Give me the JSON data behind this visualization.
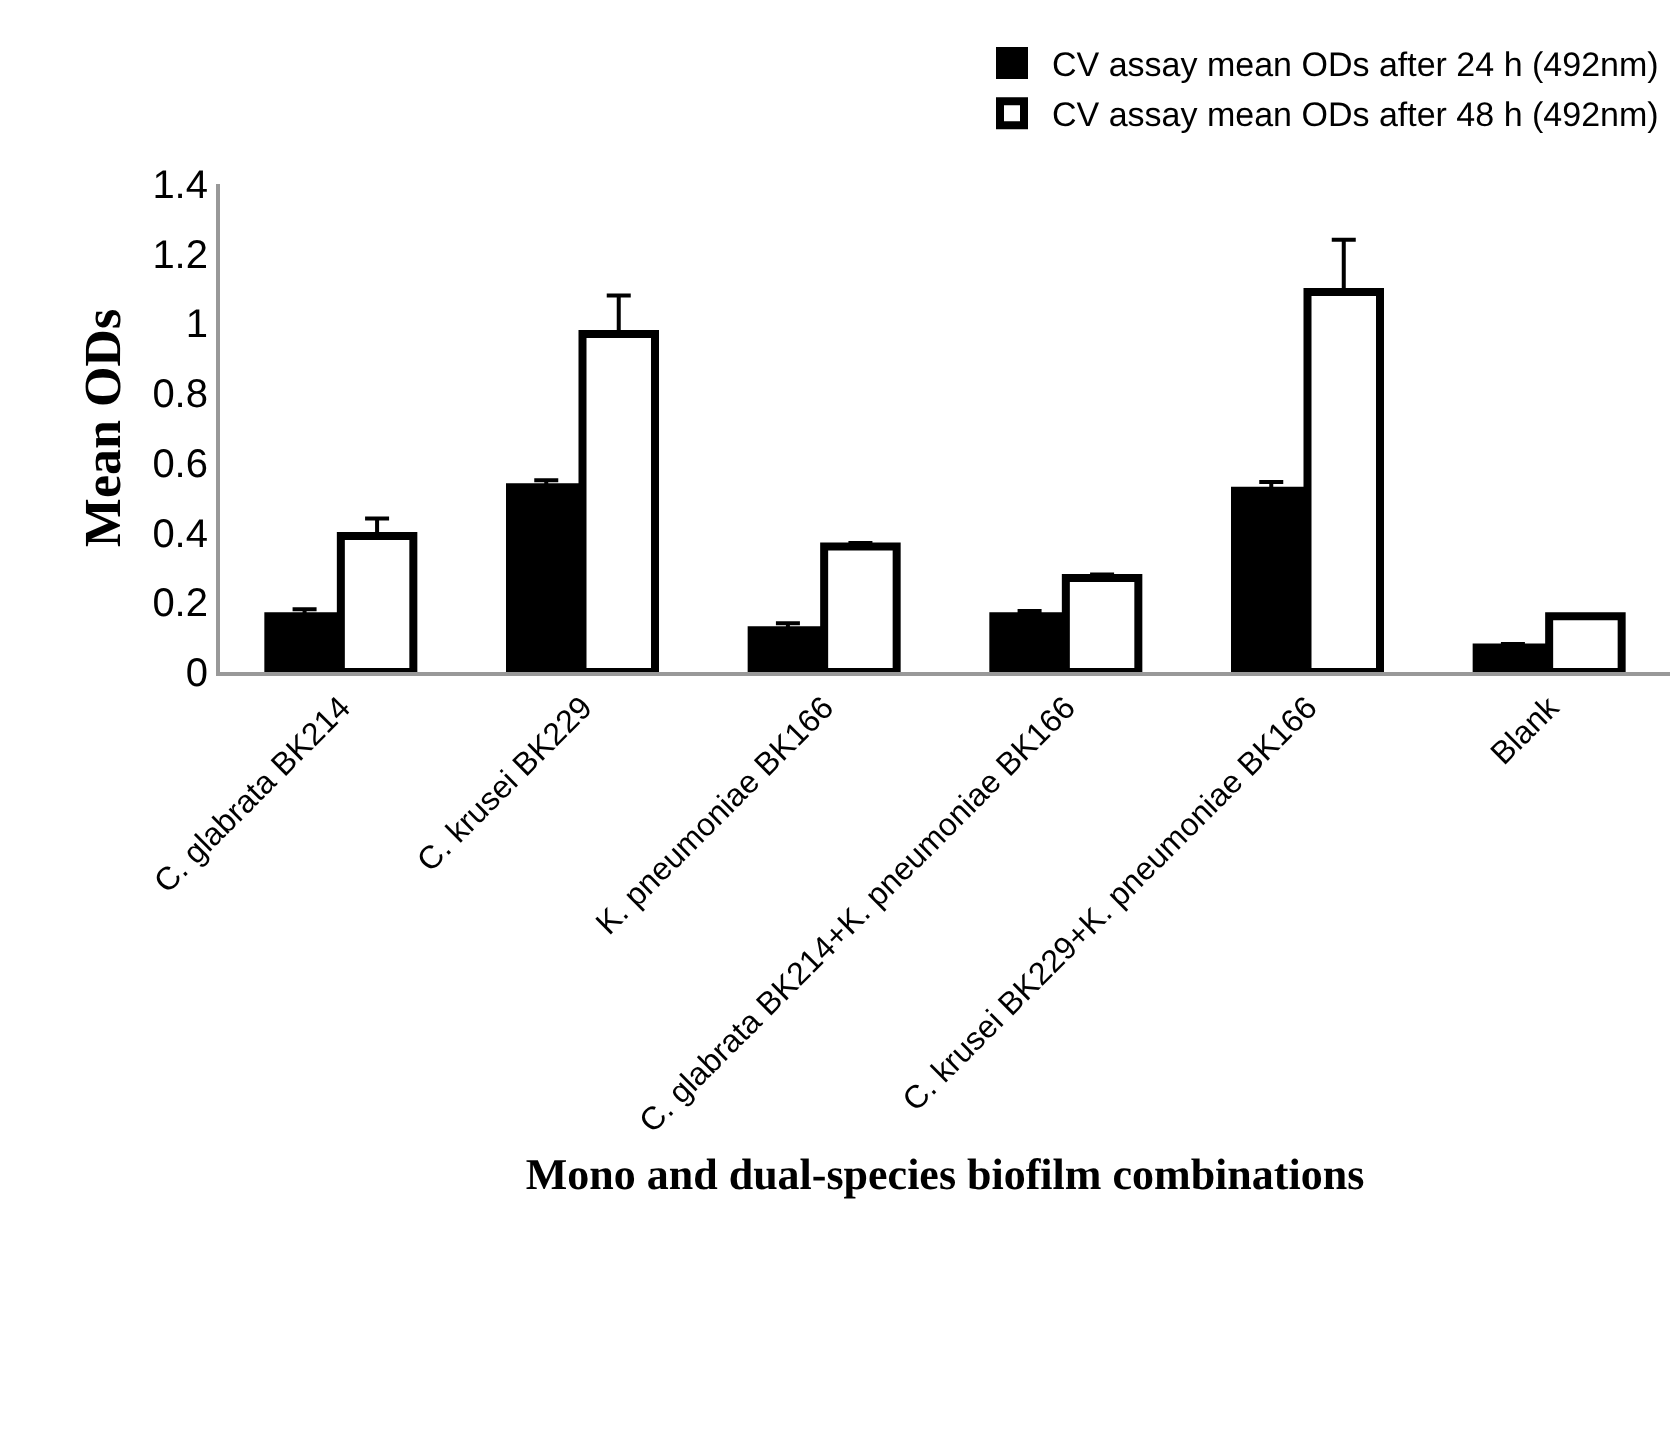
{
  "chart_data": {
    "type": "bar",
    "xlabel": "Mono and dual-species biofilm combinations",
    "ylabel": "Mean ODs",
    "categories": [
      "C. glabrata BK214",
      "C. krusei BK229",
      "K. pneumoniae BK166",
      "C. glabrata BK214+K. pneumoniae BK166",
      "C. krusei BK229+K. pneumoniae BK166",
      "Blank"
    ],
    "series": [
      {
        "name": "CV assay mean ODs after 24 h (492nm)",
        "color": "#000000",
        "values": [
          0.16,
          0.53,
          0.12,
          0.16,
          0.52,
          0.07
        ],
        "errors": [
          [
            0.16,
            0.18
          ],
          [
            0.53,
            0.55
          ],
          [
            0.12,
            0.14
          ],
          [
            0.16,
            0.175
          ],
          [
            0.52,
            0.545
          ],
          [
            0.07,
            0.08
          ]
        ]
      },
      {
        "name": "CV assay mean ODs after 48 h (492nm)",
        "color": "#ffffff",
        "values": [
          0.39,
          0.97,
          0.36,
          0.27,
          1.09,
          0.16
        ],
        "errors": [
          [
            0.39,
            0.44
          ],
          [
            0.97,
            1.08
          ],
          [
            0.36,
            0.37
          ],
          [
            0.27,
            0.28
          ],
          [
            1.09,
            1.24
          ],
          null
        ]
      }
    ],
    "ylim": [
      0,
      1.4
    ],
    "yticks": [
      0,
      0.2,
      0.4,
      0.6,
      0.8,
      1,
      1.2,
      1.4
    ],
    "grid": false,
    "legend": "top right"
  }
}
